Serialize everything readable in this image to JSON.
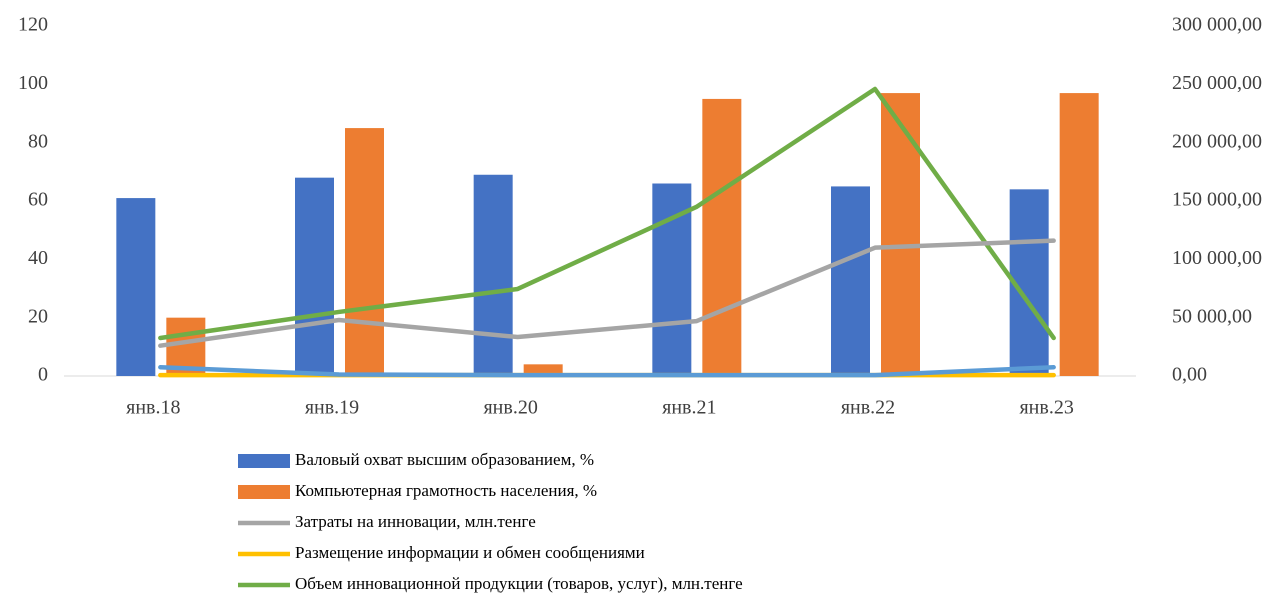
{
  "chart_data": {
    "type": "bar",
    "categories": [
      "янв.18",
      "янв.19",
      "янв.20",
      "янв.21",
      "янв.22",
      "янв.23"
    ],
    "series": [
      {
        "name": "Валовый охват высшим образованием, %",
        "type": "bar",
        "color": "#4472c4",
        "values": [
          61,
          68,
          69,
          66,
          65,
          64
        ]
      },
      {
        "name": "Компьютерная грамотность населения, %",
        "type": "bar",
        "color": "#ed7d31",
        "values": [
          20,
          85,
          4,
          95,
          97,
          97
        ]
      },
      {
        "name": "Затраты на инновации, млн.тенге",
        "type": "line",
        "axis": "y2",
        "color": "#a5a5a5",
        "values": [
          26000,
          48000,
          33400,
          47000,
          110000,
          116000
        ]
      },
      {
        "name": "Размещение информации и обмен сообщениями",
        "type": "line",
        "color": "#ffc000",
        "values": [
          0.3,
          0.3,
          0.3,
          0.3,
          0.3,
          0.3
        ]
      },
      {
        "name": "Объем инновационной продукции (товаров, услуг), млн.тенге",
        "type": "line",
        "axis": "y2",
        "color": "#70ad47",
        "values": [
          32600,
          54900,
          74600,
          144900,
          246000,
          32600
        ]
      },
      {
        "type": "line",
        "color": "#5b9bd5",
        "values": [
          3,
          0.5,
          0.3,
          0.3,
          0.3,
          3
        ]
      }
    ],
    "ylim": [
      0,
      120
    ],
    "yticks": [
      0,
      20,
      40,
      60,
      80,
      100,
      120
    ],
    "y2lim": [
      0,
      300000
    ],
    "y2ticks": [
      {
        "value": 0,
        "label": "0,00"
      },
      {
        "value": 50000,
        "label": "50 000,00"
      },
      {
        "value": 100000,
        "label": "100 000,00"
      },
      {
        "value": 150000,
        "label": "150 000,00"
      },
      {
        "value": 200000,
        "label": "200 000,00"
      },
      {
        "value": 250000,
        "label": "250 000,00"
      },
      {
        "value": 300000,
        "label": "300 000,00"
      }
    ]
  }
}
